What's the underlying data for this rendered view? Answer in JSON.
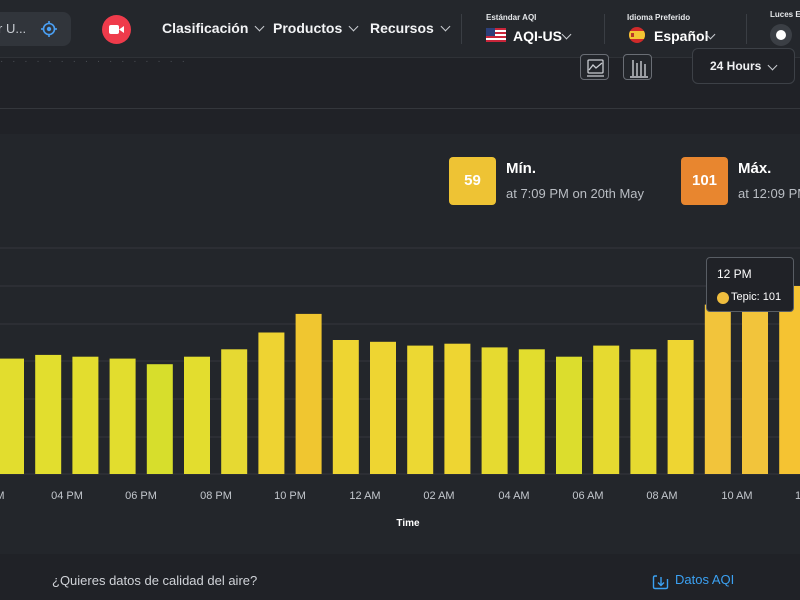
{
  "nav": {
    "search_placeholder": "r U...",
    "menus": [
      "Clasificación",
      "Productos",
      "Recursos"
    ],
    "aqi_standard": {
      "label": "Estándar AQI",
      "value": "AQI-US"
    },
    "language": {
      "label": "Idioma Preferido",
      "value": "Español"
    },
    "lights_label": "Luces E"
  },
  "toolbar": {
    "range_label": "24 Hours"
  },
  "stats": {
    "min": {
      "value": "59",
      "title": "Mín.",
      "sub": "at 7:09 PM on 20th May",
      "color": "#eec334"
    },
    "max": {
      "value": "101",
      "title": "Máx.",
      "sub": "at 12:09 PM",
      "color": "#e8862f"
    }
  },
  "tooltip": {
    "title": "12 PM",
    "text": "Tepic: 101"
  },
  "chart_data": {
    "type": "bar",
    "xlabel": "Time",
    "x_tick_labels": [
      "M",
      "04 PM",
      "06 PM",
      "08 PM",
      "10 PM",
      "12 AM",
      "02 AM",
      "04 AM",
      "06 AM",
      "08 AM",
      "10 AM",
      "1"
    ],
    "values": [
      62,
      64,
      63,
      62,
      59,
      63,
      67,
      76,
      86,
      72,
      71,
      69,
      70,
      68,
      67,
      63,
      69,
      67,
      72,
      91,
      91,
      101
    ],
    "ylim": [
      0,
      101
    ],
    "colors": [
      "#e2dd2e",
      "#e2de2e",
      "#e3dd2e",
      "#e2dd2e",
      "#d7de2c",
      "#e3dd2e",
      "#e6d932",
      "#eed332",
      "#f0c630",
      "#eed532",
      "#eed532",
      "#ecd833",
      "#eed532",
      "#e6da30",
      "#e2dd2e",
      "#dcdd2d",
      "#e6da30",
      "#e6da30",
      "#eed532",
      "#f2c43b",
      "#f2c43b",
      "#f5c332"
    ],
    "highlight_index": 21,
    "grid": true
  },
  "footer": {
    "question": "¿Quieres datos de calidad del aire?",
    "link": "Datos AQI"
  }
}
